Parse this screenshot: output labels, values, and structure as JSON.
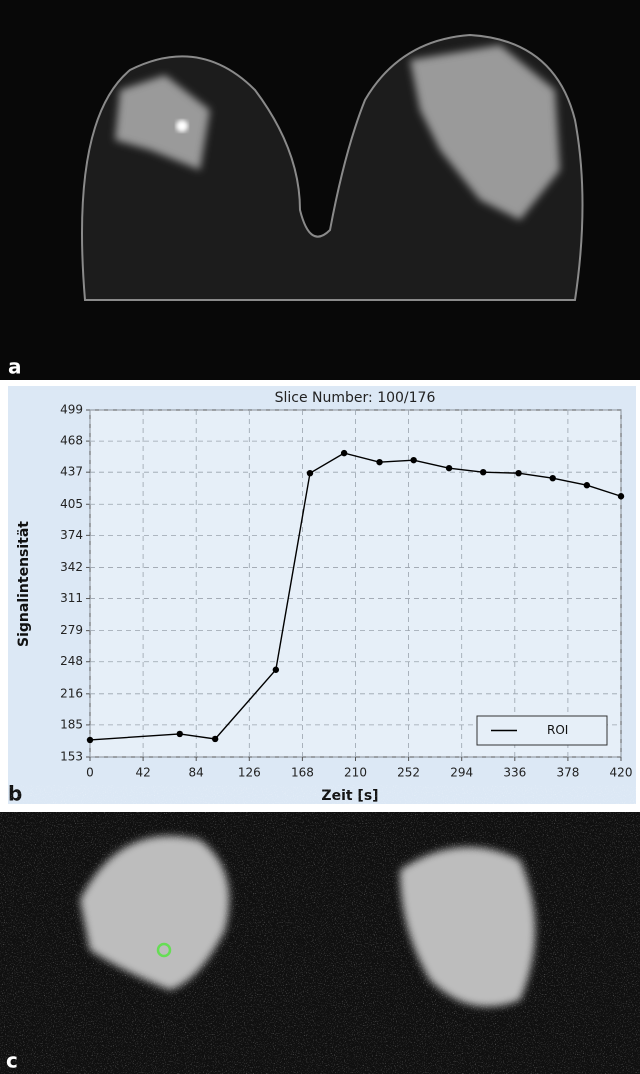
{
  "panels": [
    {
      "label": "a"
    },
    {
      "label": "b"
    },
    {
      "label": "c"
    }
  ],
  "chart_data": {
    "type": "line",
    "title": "Slice Number: 100/176",
    "xlabel": "Zeit [s]",
    "ylabel": "Signalintensität",
    "x": [
      0,
      71,
      99,
      147,
      174,
      201,
      229,
      256,
      284,
      311,
      339,
      366,
      393,
      420
    ],
    "series": [
      {
        "name": "ROI",
        "color": "#000000",
        "values": [
          170,
          176,
          171,
          240,
          436,
          456,
          447,
          449,
          441,
          437,
          436,
          431,
          424,
          413
        ]
      }
    ],
    "xlim": [
      0,
      420
    ],
    "xticks": [
      0,
      42,
      84,
      126,
      168,
      210,
      252,
      294,
      336,
      378,
      420
    ],
    "ylim": [
      153,
      499
    ],
    "yticks": [
      153,
      185,
      216,
      248,
      279,
      311,
      342,
      374,
      405,
      437,
      468,
      499
    ],
    "grid": true,
    "legend": "lower right"
  }
}
